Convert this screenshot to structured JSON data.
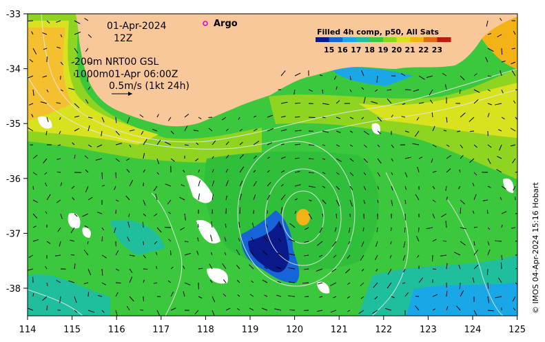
{
  "map": {
    "date": "01-Apr-2024",
    "time": "12Z",
    "contour_line_1": "200m  NRT00 GSL",
    "contour_line_2": "1000m01-Apr 06:00Z",
    "vector_scale": "0.5m/s (1kt 24h)",
    "argo_label": "Argo",
    "credit": "© IMOS 04-Apr-2024 15:16 Hobart",
    "colorbar": {
      "title": "Filled 4h comp, p50, All Sats",
      "labels": [
        "15",
        "16",
        "17",
        "18",
        "19",
        "20",
        "21",
        "22",
        "23"
      ],
      "colors": [
        "#0b1a8a",
        "#1565d8",
        "#1aa7e8",
        "#1fbf9e",
        "#3cc83c",
        "#8fd420",
        "#d8e21f",
        "#f4b216",
        "#e06a10",
        "#b81c0c"
      ]
    },
    "land_color": "#f9c89a",
    "argo_color": "#e000e0",
    "x_ticks": [
      "114",
      "115",
      "116",
      "117",
      "118",
      "119",
      "120",
      "121",
      "122",
      "123",
      "124",
      "125"
    ],
    "y_ticks": [
      "-33",
      "-34",
      "-35",
      "-36",
      "-37",
      "-38"
    ]
  }
}
